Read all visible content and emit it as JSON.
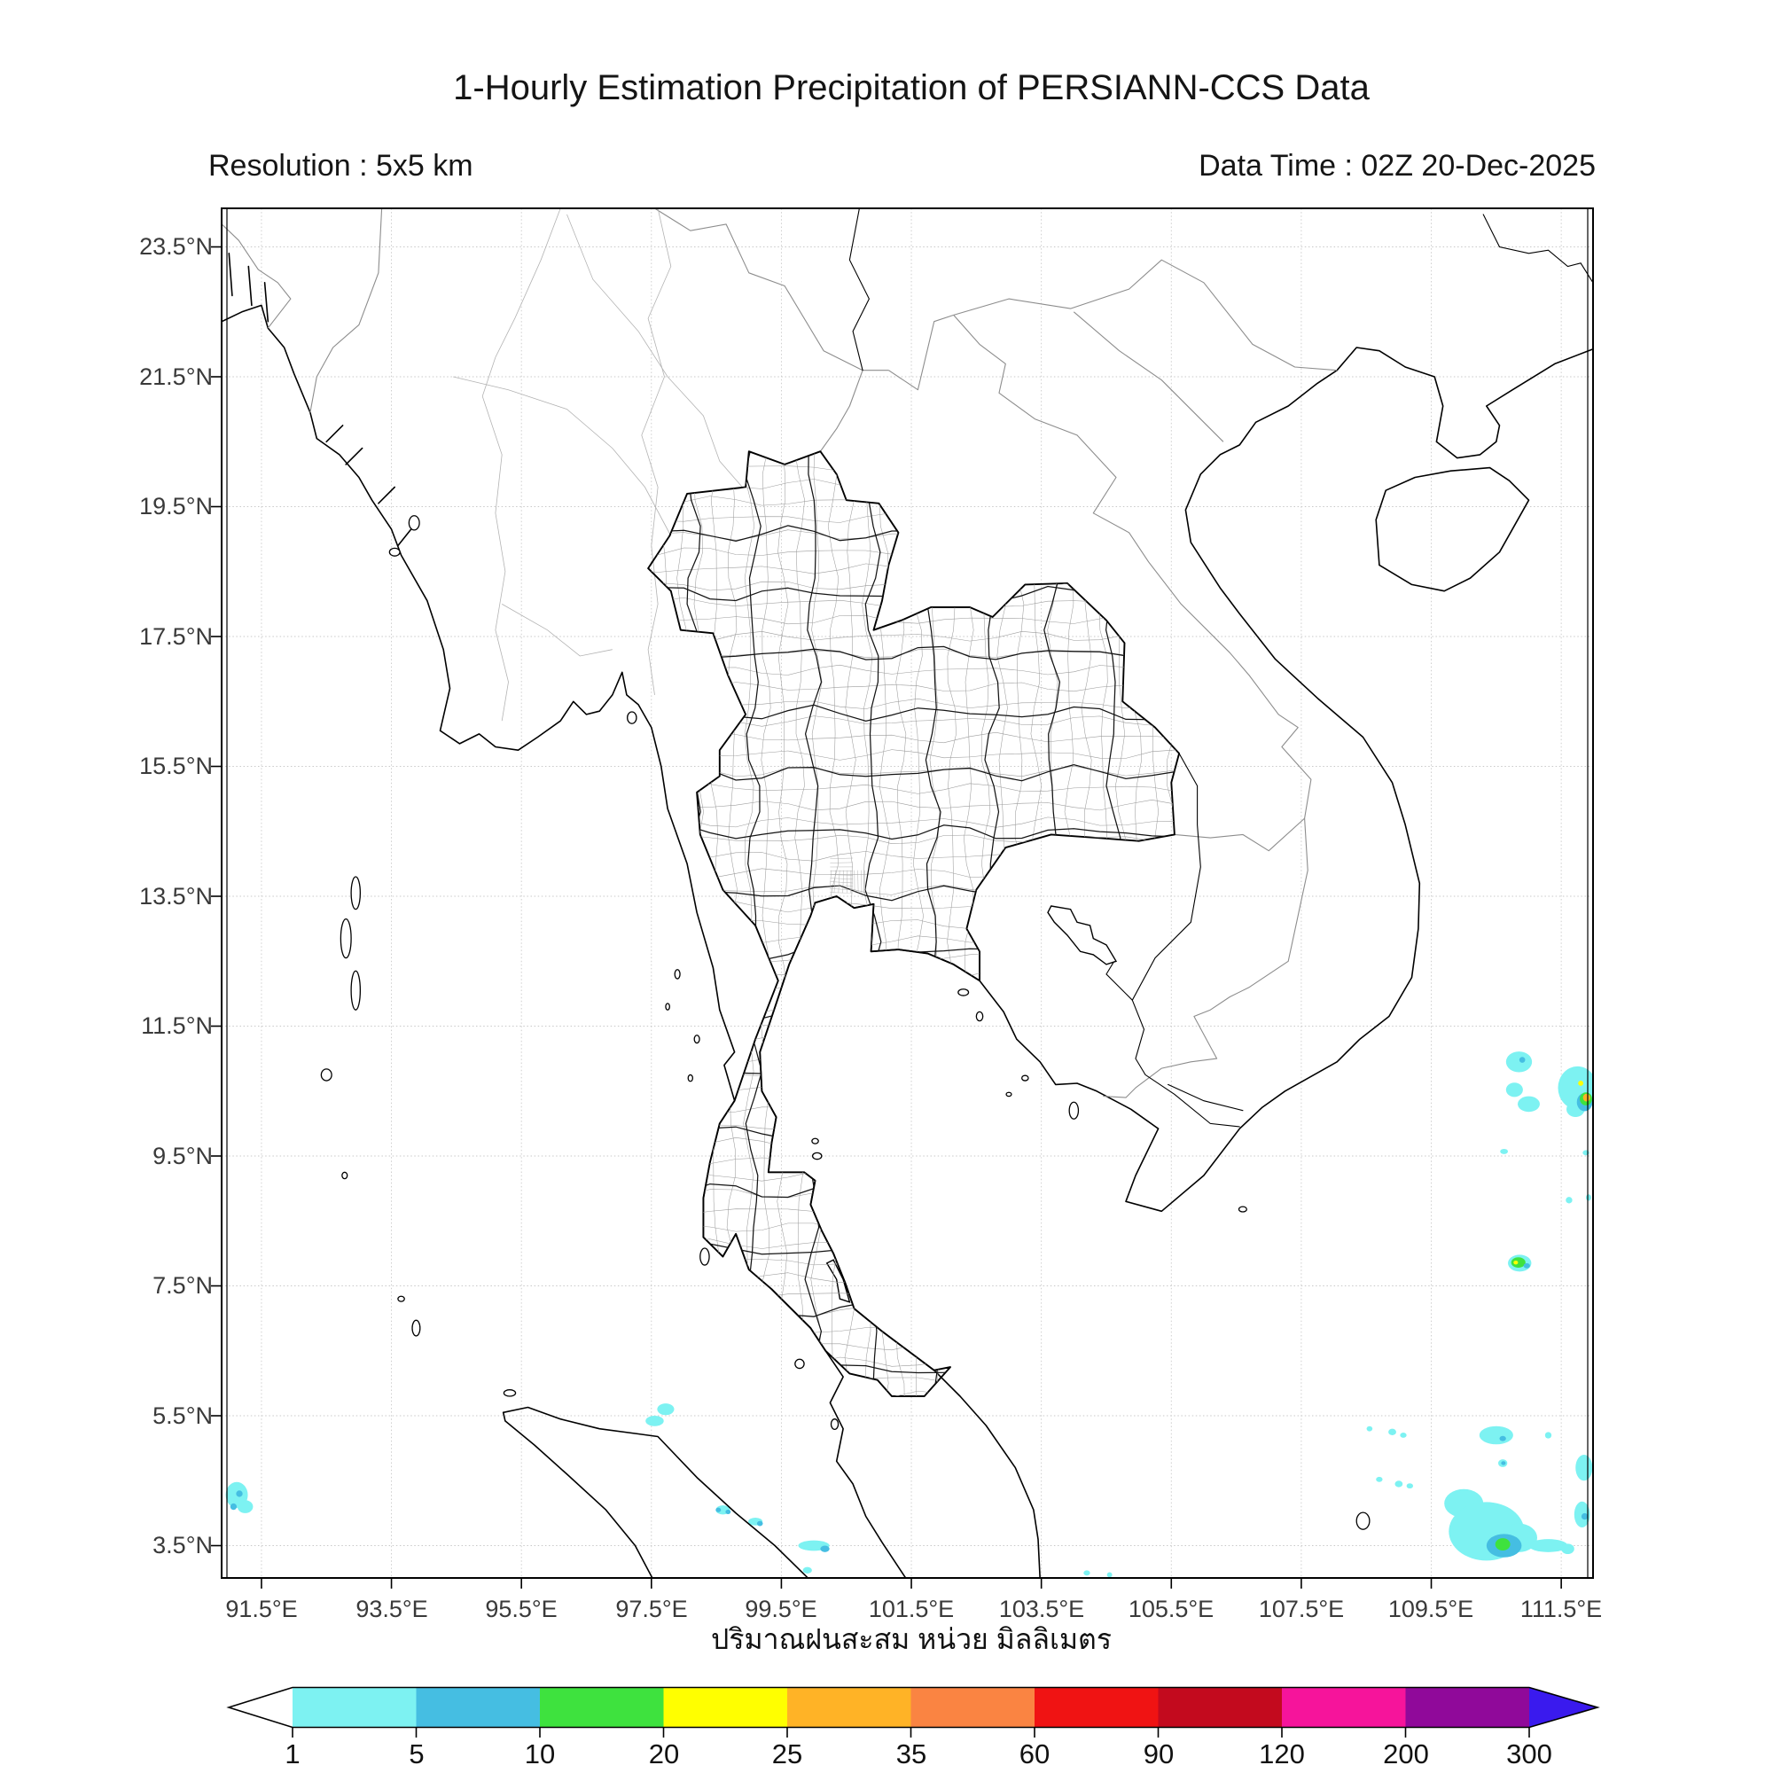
{
  "header": {
    "title": "1-Hourly Estimation Precipitation of PERSIANN-CCS Data",
    "resolution_label": "Resolution : 5x5 km",
    "data_time_label": "Data Time : 02Z 20-Dec-2025"
  },
  "map": {
    "lon_ticks": [
      "91.5°E",
      "93.5°E",
      "95.5°E",
      "97.5°E",
      "99.5°E",
      "101.5°E",
      "103.5°E",
      "105.5°E",
      "107.5°E",
      "109.5°E",
      "111.5°E"
    ],
    "lat_ticks": [
      "23.5°N",
      "21.5°N",
      "19.5°N",
      "17.5°N",
      "15.5°N",
      "13.5°N",
      "11.5°N",
      "9.5°N",
      "7.5°N",
      "5.5°N",
      "3.5°N"
    ]
  },
  "colorbar": {
    "title_thai": "ปริมาณฝนสะสม หน่วย มิลลิเมตร",
    "labels": [
      "1",
      "5",
      "10",
      "20",
      "25",
      "35",
      "60",
      "90",
      "120",
      "200",
      "300"
    ],
    "colors": [
      "#7df2f2",
      "#45bee2",
      "#3ee23e",
      "#ffff00",
      "#ffb326",
      "#fa8442",
      "#f01313",
      "#c30a1e",
      "#f6149b",
      "#90099a"
    ],
    "under_color": "#ffffff",
    "over_color": "#3a1aee"
  },
  "chart_data": {
    "type": "heatmap",
    "subtype": "precipitation-map",
    "title": "1-Hourly Estimation Precipitation of PERSIANN-CCS Data",
    "resolution": "5x5 km",
    "data_time": "02Z 20-Dec-2025",
    "units": "mm",
    "extent": {
      "lon_min": 90.9,
      "lon_max": 112.0,
      "lat_min": 3.0,
      "lat_max": 24.1
    },
    "grid_spacing_deg": 2,
    "lon_tick_values": [
      91.5,
      93.5,
      95.5,
      97.5,
      99.5,
      101.5,
      103.5,
      105.5,
      107.5,
      109.5,
      111.5
    ],
    "lat_tick_values": [
      23.5,
      21.5,
      19.5,
      17.5,
      15.5,
      13.5,
      11.5,
      9.5,
      7.5,
      5.5,
      3.5
    ],
    "levels_mm": [
      1,
      5,
      10,
      20,
      25,
      35,
      60,
      90,
      120,
      200,
      300
    ],
    "palette": [
      "#7df2f2",
      "#45bee2",
      "#3ee23e",
      "#ffff00",
      "#ffb326",
      "#fa8442",
      "#f01313",
      "#c30a1e",
      "#f6149b",
      "#90099a"
    ],
    "cell_format": [
      "lon_deg_E",
      "lat_deg_N",
      "rx_deg",
      "ry_deg",
      "est_mm"
    ],
    "precip_cells": [
      [
        110.85,
        10.95,
        0.2,
        0.16,
        3
      ],
      [
        110.78,
        10.52,
        0.13,
        0.11,
        3
      ],
      [
        111.0,
        10.3,
        0.17,
        0.12,
        3
      ],
      [
        110.9,
        10.98,
        0.045,
        0.045,
        7
      ],
      [
        111.75,
        10.55,
        0.3,
        0.33,
        3
      ],
      [
        111.72,
        10.22,
        0.14,
        0.12,
        3
      ],
      [
        111.86,
        10.33,
        0.12,
        0.14,
        7
      ],
      [
        111.88,
        10.38,
        0.095,
        0.1,
        15
      ],
      [
        111.89,
        10.4,
        0.055,
        0.06,
        30
      ],
      [
        111.8,
        10.62,
        0.04,
        0.04,
        22
      ],
      [
        111.88,
        9.55,
        0.05,
        0.04,
        3
      ],
      [
        110.62,
        9.57,
        0.06,
        0.04,
        3
      ],
      [
        111.62,
        8.82,
        0.05,
        0.05,
        3
      ],
      [
        111.92,
        8.86,
        0.04,
        0.05,
        3
      ],
      [
        110.86,
        7.85,
        0.18,
        0.13,
        3
      ],
      [
        110.84,
        7.86,
        0.11,
        0.08,
        15
      ],
      [
        110.97,
        7.81,
        0.05,
        0.04,
        7
      ],
      [
        110.8,
        7.86,
        0.035,
        0.03,
        22
      ],
      [
        110.0,
        4.15,
        0.3,
        0.22,
        3
      ],
      [
        110.35,
        3.72,
        0.58,
        0.45,
        3
      ],
      [
        110.85,
        3.62,
        0.28,
        0.22,
        3
      ],
      [
        110.62,
        3.5,
        0.27,
        0.18,
        7
      ],
      [
        110.6,
        3.52,
        0.115,
        0.095,
        15
      ],
      [
        110.5,
        5.2,
        0.26,
        0.14,
        3
      ],
      [
        110.6,
        5.15,
        0.05,
        0.04,
        7
      ],
      [
        111.3,
        5.2,
        0.05,
        0.05,
        3
      ],
      [
        110.6,
        4.77,
        0.07,
        0.06,
        3
      ],
      [
        110.61,
        4.77,
        0.035,
        0.03,
        7
      ],
      [
        111.85,
        4.7,
        0.13,
        0.2,
        3
      ],
      [
        111.82,
        3.98,
        0.12,
        0.2,
        3
      ],
      [
        111.86,
        3.95,
        0.05,
        0.05,
        7
      ],
      [
        111.3,
        3.5,
        0.3,
        0.1,
        3
      ],
      [
        111.6,
        3.45,
        0.1,
        0.08,
        3
      ],
      [
        108.55,
        5.3,
        0.045,
        0.04,
        3
      ],
      [
        108.9,
        5.25,
        0.06,
        0.05,
        3
      ],
      [
        109.07,
        5.2,
        0.05,
        0.04,
        3
      ],
      [
        108.7,
        4.52,
        0.05,
        0.04,
        3
      ],
      [
        109.0,
        4.45,
        0.06,
        0.05,
        3
      ],
      [
        109.17,
        4.42,
        0.05,
        0.04,
        3
      ],
      [
        91.12,
        4.28,
        0.17,
        0.2,
        3
      ],
      [
        91.25,
        4.1,
        0.12,
        0.1,
        3
      ],
      [
        91.16,
        4.3,
        0.05,
        0.05,
        7
      ],
      [
        91.07,
        4.1,
        0.05,
        0.05,
        7
      ],
      [
        97.72,
        5.6,
        0.13,
        0.09,
        3
      ],
      [
        97.55,
        5.42,
        0.14,
        0.08,
        3
      ],
      [
        98.6,
        4.05,
        0.11,
        0.07,
        3
      ],
      [
        98.53,
        4.05,
        0.04,
        0.035,
        7
      ],
      [
        98.68,
        4.02,
        0.04,
        0.035,
        7
      ],
      [
        99.1,
        3.87,
        0.11,
        0.06,
        3
      ],
      [
        99.17,
        3.84,
        0.045,
        0.04,
        7
      ],
      [
        100.0,
        3.5,
        0.24,
        0.08,
        3
      ],
      [
        100.17,
        3.45,
        0.07,
        0.05,
        7
      ],
      [
        99.9,
        3.12,
        0.07,
        0.05,
        3
      ],
      [
        104.2,
        3.08,
        0.05,
        0.04,
        3
      ],
      [
        104.55,
        3.05,
        0.04,
        0.04,
        3
      ]
    ]
  }
}
